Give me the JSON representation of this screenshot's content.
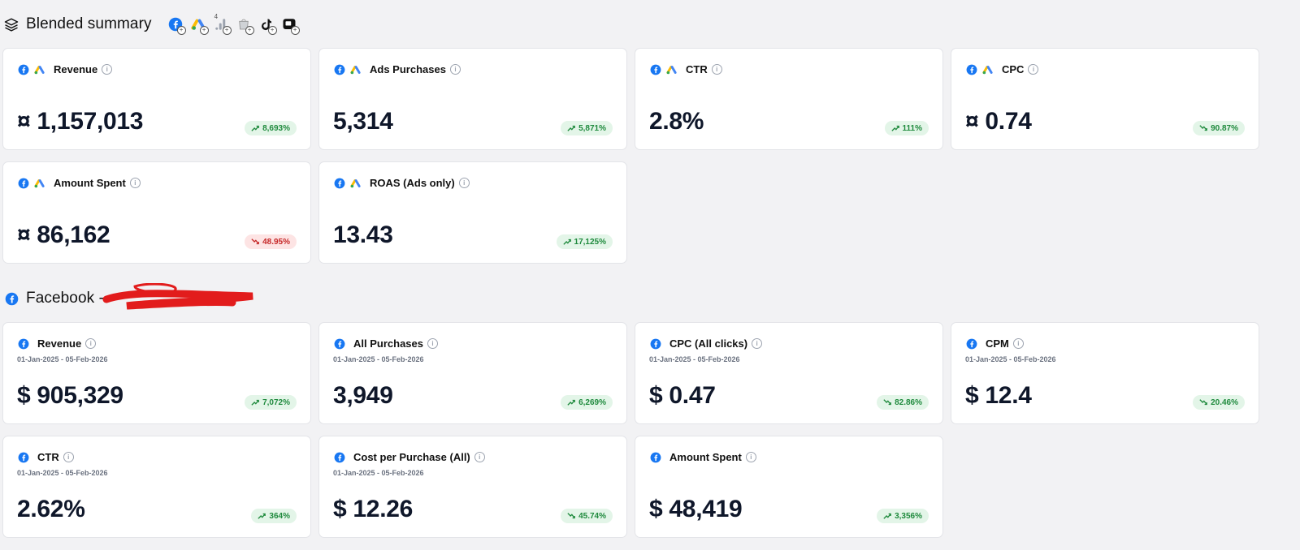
{
  "blended": {
    "title": "Blended summary",
    "sources": [
      "facebook-icon",
      "google-ads-icon",
      "google-analytics-icon",
      "shopify-icon",
      "tiktok-icon",
      "other-source-icon"
    ],
    "source_badge": "4",
    "cards": [
      {
        "title": "Revenue",
        "value": "¤ 1,157,013",
        "change": "8,693%",
        "trend": "up"
      },
      {
        "title": "Ads Purchases",
        "value": "5,314",
        "change": "5,871%",
        "trend": "up"
      },
      {
        "title": "CTR",
        "value": "2.8%",
        "change": "111%",
        "trend": "up"
      },
      {
        "title": "CPC",
        "value": "¤ 0.74",
        "change": "90.87%",
        "trend": "down-good"
      },
      {
        "title": "Amount Spent",
        "value": "¤ 86,162",
        "change": "48.95%",
        "trend": "down-bad"
      },
      {
        "title": "ROAS (Ads only)",
        "value": "13.43",
        "change": "17,125%",
        "trend": "up"
      }
    ]
  },
  "facebook": {
    "title": "Facebook -",
    "date_range": "01-Jan-2025 - 05-Feb-2026",
    "cards": [
      {
        "title": "Revenue",
        "value": "$ 905,329",
        "change": "7,072%",
        "trend": "up",
        "date": "01-Jan-2025 - 05-Feb-2026"
      },
      {
        "title": "All Purchases",
        "value": "3,949",
        "change": "6,269%",
        "trend": "up",
        "date": "01-Jan-2025 - 05-Feb-2026"
      },
      {
        "title": "CPC (All clicks)",
        "value": "$ 0.47",
        "change": "82.86%",
        "trend": "down-good",
        "date": "01-Jan-2025 - 05-Feb-2026"
      },
      {
        "title": "CPM",
        "value": "$ 12.4",
        "change": "20.46%",
        "trend": "down-good",
        "date": "01-Jan-2025 - 05-Feb-2026"
      },
      {
        "title": "CTR",
        "value": "2.62%",
        "change": "364%",
        "trend": "up",
        "date": "01-Jan-2025 - 05-Feb-2026"
      },
      {
        "title": "Cost per Purchase (All)",
        "value": "$ 12.26",
        "change": "45.74%",
        "trend": "down-good",
        "date": "01-Jan-2025 - 05-Feb-2026"
      },
      {
        "title": "Amount Spent",
        "value": "$ 48,419",
        "change": "3,356%",
        "trend": "up",
        "date": ""
      }
    ]
  },
  "colors": {
    "facebook": "#1877f2",
    "up": "#1f8a3d",
    "down_bad": "#c62828",
    "background": "#f2f2f4"
  }
}
